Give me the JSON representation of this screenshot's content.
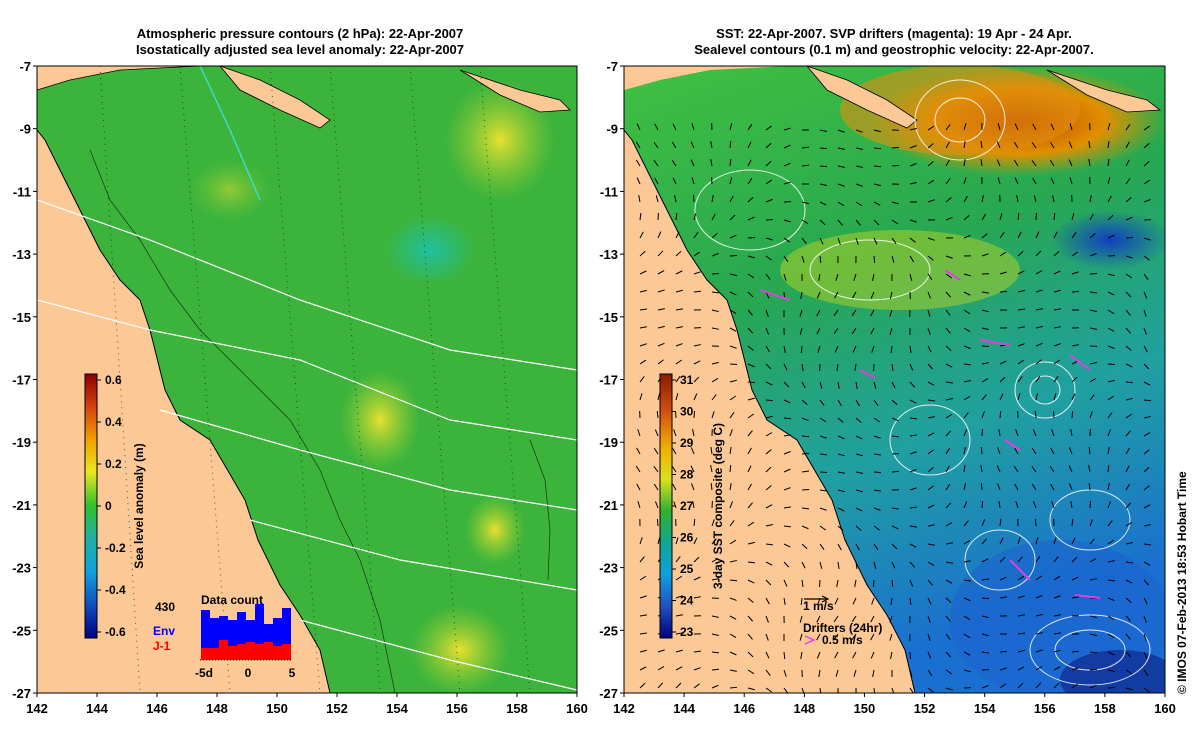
{
  "left_panel": {
    "title_line1": "Atmospheric pressure contours (2 hPa): 22-Apr-2007",
    "title_line2": "Isostatically adjusted sea level anomaly: 22-Apr-2007",
    "y_ticks": [
      "-7",
      "-9",
      "-11",
      "-13",
      "-15",
      "-17",
      "-19",
      "-21",
      "-23",
      "-25",
      "-27"
    ],
    "x_ticks": [
      "142",
      "144",
      "146",
      "148",
      "150",
      "152",
      "154",
      "156",
      "158",
      "160"
    ],
    "colorbar": {
      "label": "Sea level anomaly (m)",
      "ticks": [
        "0.6",
        "0.4",
        "0.2",
        "0",
        "-0.2",
        "-0.4",
        "-0.6"
      ],
      "colors": [
        "#ffffff"
      ]
    },
    "data_count": {
      "title": "Data count",
      "max_label": "430",
      "env_label": "Env",
      "j1_label": "J-1",
      "x_ticks": [
        "-5d",
        "0",
        "5"
      ],
      "env_color": "#0000ff",
      "j1_color": "#ff0000"
    }
  },
  "right_panel": {
    "title_line1": "SST: 22-Apr-2007. SVP drifters (magenta): 19 Apr - 24 Apr.",
    "title_line2": "Sealevel contours (0.1 m) and geostrophic velocity: 22-Apr-2007.",
    "y_ticks": [
      "-7",
      "-9",
      "-11",
      "-13",
      "-15",
      "-17",
      "-19",
      "-21",
      "-23",
      "-25",
      "-27"
    ],
    "x_ticks": [
      "142",
      "144",
      "146",
      "148",
      "150",
      "152",
      "154",
      "156",
      "158",
      "160"
    ],
    "colorbar": {
      "label": "3-day SST composite (deg C)",
      "ticks": [
        "31",
        "30",
        "29",
        "28",
        "27",
        "26",
        "25",
        "24",
        "23"
      ]
    },
    "velocity_scale_label": "1 m/s",
    "drifters_label": "Drifters (24hr)",
    "drifter_speed_label": "0.5 m/s"
  },
  "footer_credit": "© IMOS 07-Feb-2013 18:53 Hobart Time",
  "colors": {
    "land": "#fcc896",
    "ocean_left": "#34b434",
    "ocean_right": "#28a65a",
    "magenta": "#e040e0"
  }
}
